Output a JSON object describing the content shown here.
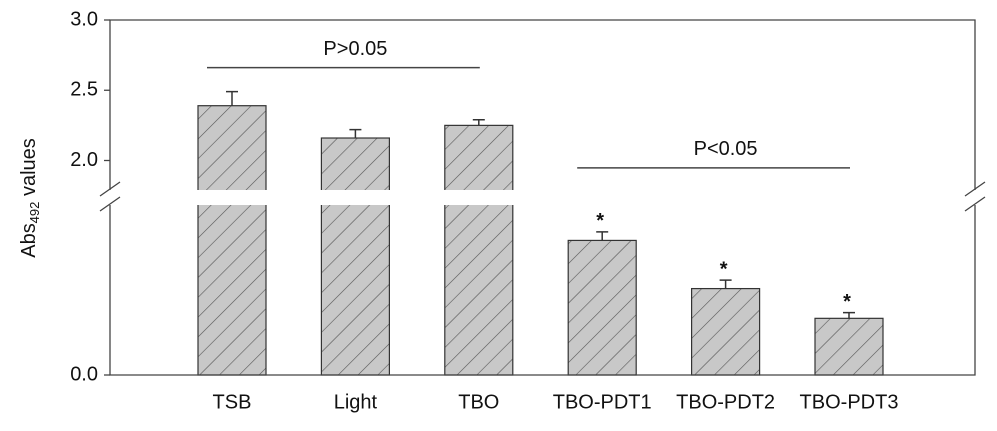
{
  "chart_data": {
    "type": "bar",
    "y_label": {
      "main": "Abs",
      "sub": "492",
      "rest": " values"
    },
    "categories": [
      "TSB",
      "Light",
      "TBO",
      "TBO-PDT1",
      "TBO-PDT2",
      "TBO-PDT3"
    ],
    "values": [
      2.39,
      2.16,
      2.25,
      0.95,
      0.61,
      0.4
    ],
    "errors": [
      0.1,
      0.06,
      0.04,
      0.06,
      0.06,
      0.04
    ],
    "color": "#c8c8c8",
    "ylim": [
      0,
      3.0
    ],
    "axis_break": [
      1.2,
      1.79
    ],
    "yticks": [
      {
        "value": 0,
        "label": "0.0"
      },
      {
        "value": 2,
        "label": "2.0"
      },
      2.5,
      {
        "value": 3,
        "label": "3.0"
      }
    ],
    "brackets": [
      {
        "label": "P>0.05",
        "from": "TSB",
        "to": "TBO"
      },
      {
        "label": "P<0.05",
        "from": "TBO-PDT1",
        "to": "TBO-PDT3"
      }
    ],
    "significance_marks": {
      "label": "*",
      "categories": [
        "TBO-PDT1",
        "TBO-PDT2",
        "TBO-PDT3"
      ]
    }
  }
}
